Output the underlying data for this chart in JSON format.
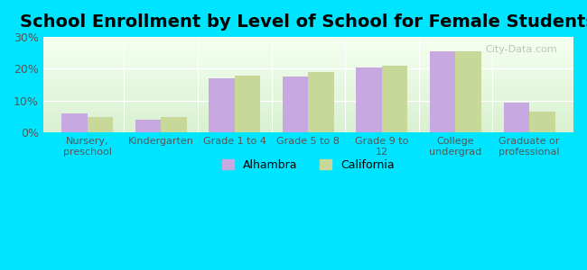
{
  "title": "School Enrollment by Level of School for Female Students",
  "categories": [
    "Nursery,\npreschool",
    "Kindergarten",
    "Grade 1 to 4",
    "Grade 5 to 8",
    "Grade 9 to\n12",
    "College\nundergrad",
    "Graduate or\nprofessional"
  ],
  "alhambra": [
    6.0,
    4.0,
    17.0,
    17.5,
    20.5,
    25.5,
    9.5
  ],
  "california": [
    4.8,
    4.8,
    18.0,
    19.0,
    21.0,
    25.5,
    6.5
  ],
  "alhambra_color": "#c8a8e0",
  "california_color": "#c8d898",
  "background_outer": "#00e5ff",
  "ylim": [
    0,
    30
  ],
  "yticks": [
    0,
    10,
    20,
    30
  ],
  "ytick_labels": [
    "0%",
    "10%",
    "20%",
    "30%"
  ],
  "title_fontsize": 14,
  "legend_labels": [
    "Alhambra",
    "California"
  ],
  "bar_width": 0.35
}
